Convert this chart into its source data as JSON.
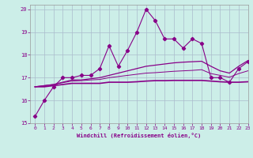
{
  "title": "",
  "xlabel": "Windchill (Refroidissement éolien,°C)",
  "xlim": [
    -0.5,
    23
  ],
  "ylim": [
    15,
    20.2
  ],
  "yticks": [
    15,
    16,
    17,
    18,
    19,
    20
  ],
  "xticks": [
    0,
    1,
    2,
    3,
    4,
    5,
    6,
    7,
    8,
    9,
    10,
    11,
    12,
    13,
    14,
    15,
    16,
    17,
    18,
    19,
    20,
    21,
    22,
    23
  ],
  "bg_color": "#cceee8",
  "line_color": "#880088",
  "grid_color": "#aabbcc",
  "series1": [
    15.3,
    16.0,
    16.6,
    17.0,
    17.0,
    17.1,
    17.1,
    17.4,
    18.4,
    17.5,
    18.2,
    19.0,
    20.0,
    19.5,
    18.7,
    18.7,
    18.3,
    18.7,
    18.5,
    17.0,
    17.0,
    16.8,
    17.4,
    17.7
  ],
  "series2": [
    16.6,
    16.6,
    16.65,
    16.7,
    16.75,
    16.75,
    16.75,
    16.75,
    16.8,
    16.8,
    16.8,
    16.82,
    16.85,
    16.87,
    16.87,
    16.88,
    16.88,
    16.88,
    16.88,
    16.85,
    16.82,
    16.8,
    16.8,
    16.82
  ],
  "series3": [
    16.6,
    16.65,
    16.7,
    16.8,
    16.9,
    16.9,
    16.95,
    17.0,
    17.1,
    17.2,
    17.3,
    17.4,
    17.5,
    17.55,
    17.6,
    17.65,
    17.68,
    17.7,
    17.72,
    17.5,
    17.3,
    17.2,
    17.5,
    17.75
  ],
  "series4": [
    16.6,
    16.65,
    16.7,
    16.78,
    16.85,
    16.87,
    16.9,
    16.92,
    17.0,
    17.05,
    17.1,
    17.15,
    17.2,
    17.22,
    17.25,
    17.28,
    17.3,
    17.32,
    17.35,
    17.18,
    17.1,
    17.02,
    17.18,
    17.3
  ]
}
